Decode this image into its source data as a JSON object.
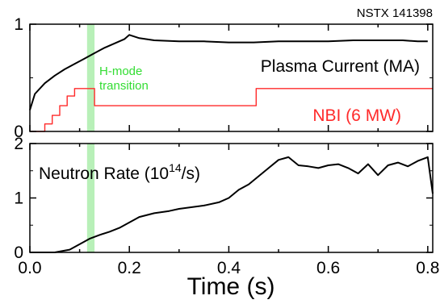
{
  "shot_label": "NSTX 141398",
  "colors": {
    "current": "#000000",
    "nbi": "#ff2a2a",
    "neutron": "#000000",
    "hmode_band": "#b8f0b8",
    "hmode_text": "#33dd33"
  },
  "chart_data": [
    {
      "type": "line",
      "title": "",
      "xlabel": "Time (s)",
      "xlim": [
        0,
        0.81
      ],
      "ylim": [
        0,
        1
      ],
      "yticks": [
        "0",
        "1"
      ],
      "shaded_interval": {
        "x": [
          0.115,
          0.13
        ],
        "label_lines": [
          "H-mode",
          "transition"
        ]
      },
      "series": [
        {
          "name": "Plasma Current (MA)",
          "x": [
            0.0,
            0.01,
            0.03,
            0.05,
            0.07,
            0.09,
            0.11,
            0.13,
            0.15,
            0.17,
            0.19,
            0.2,
            0.22,
            0.25,
            0.3,
            0.35,
            0.4,
            0.45,
            0.5,
            0.55,
            0.6,
            0.65,
            0.7,
            0.75,
            0.78,
            0.8
          ],
          "y": [
            0.2,
            0.35,
            0.45,
            0.52,
            0.58,
            0.63,
            0.68,
            0.73,
            0.78,
            0.82,
            0.86,
            0.9,
            0.87,
            0.85,
            0.84,
            0.84,
            0.83,
            0.83,
            0.84,
            0.84,
            0.84,
            0.85,
            0.85,
            0.85,
            0.84,
            0.84
          ]
        },
        {
          "name": "NBI (6 MW)",
          "x": [
            0.0,
            0.03,
            0.03,
            0.045,
            0.045,
            0.06,
            0.06,
            0.075,
            0.075,
            0.09,
            0.09,
            0.13,
            0.13,
            0.455,
            0.455,
            0.81
          ],
          "y": [
            0.0,
            0.0,
            0.07,
            0.07,
            0.15,
            0.15,
            0.24,
            0.24,
            0.33,
            0.33,
            0.4,
            0.4,
            0.24,
            0.24,
            0.4,
            0.4
          ]
        }
      ]
    },
    {
      "type": "line",
      "xlabel": "Time (s)",
      "xlim": [
        0,
        0.81
      ],
      "ylim": [
        0,
        2
      ],
      "xticks": [
        "0.0",
        "0.2",
        "0.4",
        "0.6",
        "0.8"
      ],
      "yticks": [
        "0",
        "1",
        "2"
      ],
      "series": [
        {
          "name": "Neutron Rate (10^14/s)",
          "name_parts": {
            "prefix": "Neutron Rate (10",
            "sup": "14",
            "suffix": "/s)"
          },
          "x": [
            0.0,
            0.05,
            0.08,
            0.1,
            0.12,
            0.14,
            0.16,
            0.18,
            0.2,
            0.22,
            0.25,
            0.28,
            0.3,
            0.35,
            0.38,
            0.4,
            0.42,
            0.44,
            0.46,
            0.48,
            0.5,
            0.52,
            0.54,
            0.56,
            0.58,
            0.6,
            0.62,
            0.64,
            0.66,
            0.68,
            0.7,
            0.72,
            0.74,
            0.76,
            0.78,
            0.8,
            0.81
          ],
          "y": [
            0.0,
            0.0,
            0.05,
            0.15,
            0.25,
            0.32,
            0.38,
            0.45,
            0.55,
            0.65,
            0.72,
            0.76,
            0.8,
            0.86,
            0.92,
            1.0,
            1.15,
            1.25,
            1.4,
            1.55,
            1.7,
            1.75,
            1.6,
            1.58,
            1.55,
            1.6,
            1.62,
            1.55,
            1.45,
            1.62,
            1.42,
            1.6,
            1.65,
            1.58,
            1.68,
            1.75,
            1.08
          ]
        }
      ]
    }
  ]
}
